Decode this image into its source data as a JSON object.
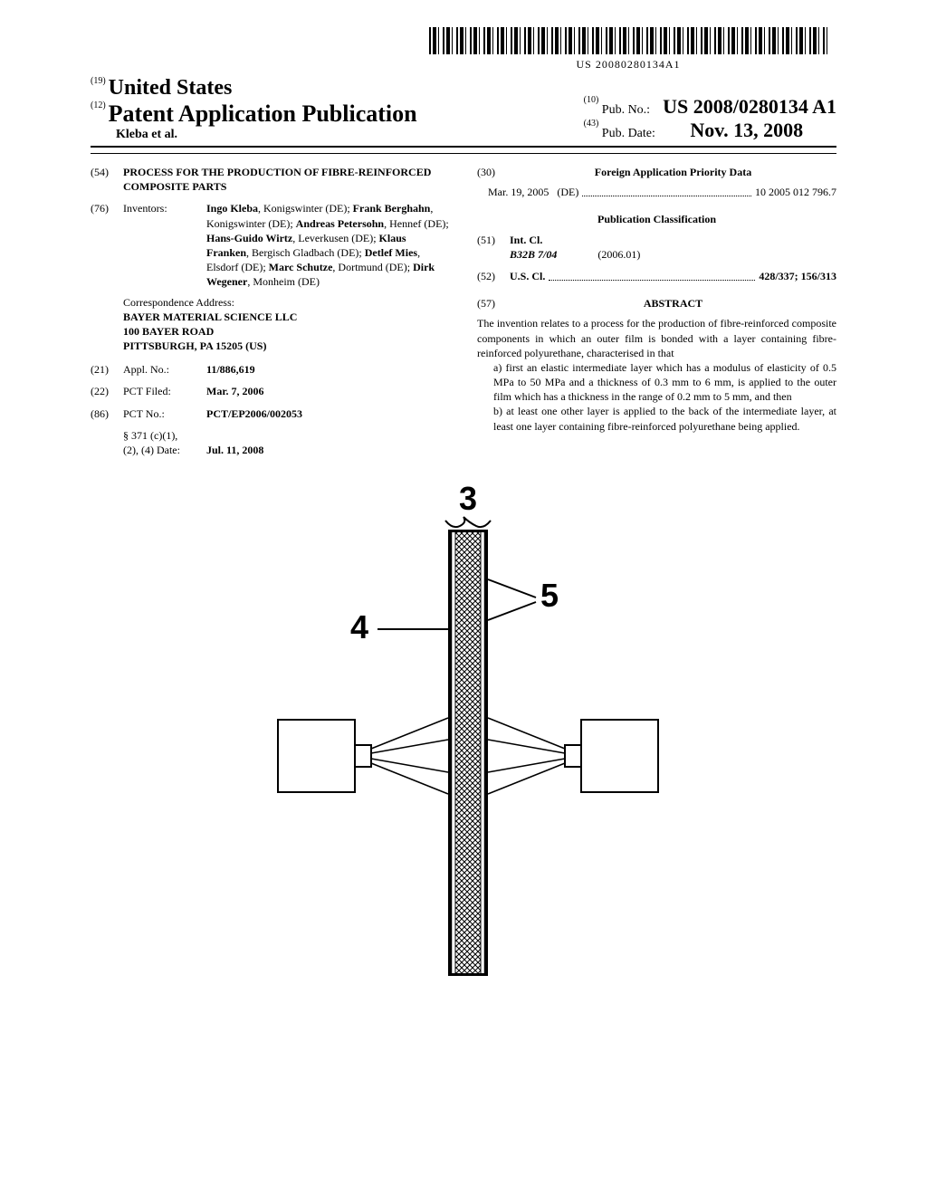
{
  "barcode_text": "US 20080280134A1",
  "header": {
    "code19": "(19)",
    "country": "United States",
    "code12": "(12)",
    "doc_type": "Patent Application Publication",
    "authors_line": "Kleba et al.",
    "code10": "(10)",
    "pubno_label": "Pub. No.:",
    "pubno": "US 2008/0280134 A1",
    "code43": "(43)",
    "pubdate_label": "Pub. Date:",
    "pubdate": "Nov. 13, 2008"
  },
  "title": {
    "code": "(54)",
    "text": "PROCESS FOR THE PRODUCTION OF FIBRE-REINFORCED COMPOSITE PARTS"
  },
  "inventors": {
    "code": "(76)",
    "label": "Inventors:",
    "list": "Ingo Kleba, Konigswinter (DE); Frank Berghahn, Konigswinter (DE); Andreas Petersohn, Hennef (DE); Hans-Guido Wirtz, Leverkusen (DE); Klaus Franken, Bergisch Gladbach (DE); Detlef Mies, Elsdorf (DE); Marc Schutze, Dortmund (DE); Dirk Wegener, Monheim (DE)"
  },
  "correspondence": {
    "label": "Correspondence Address:",
    "line1": "BAYER MATERIAL SCIENCE LLC",
    "line2": "100 BAYER ROAD",
    "line3": "PITTSBURGH, PA 15205 (US)"
  },
  "applno": {
    "code": "(21)",
    "label": "Appl. No.:",
    "value": "11/886,619"
  },
  "pctfiled": {
    "code": "(22)",
    "label": "PCT Filed:",
    "value": "Mar. 7, 2006"
  },
  "pctno": {
    "code": "(86)",
    "label": "PCT No.:",
    "value": "PCT/EP2006/002053"
  },
  "s371": {
    "line1": "§ 371 (c)(1),",
    "line2_label": "(2), (4) Date:",
    "line2_value": "Jul. 11, 2008"
  },
  "foreign": {
    "code": "(30)",
    "title": "Foreign Application Priority Data",
    "date": "Mar. 19, 2005",
    "country": "(DE)",
    "number": "10 2005 012 796.7"
  },
  "pubclass": {
    "title": "Publication Classification",
    "intcl_code": "(51)",
    "intcl_label": "Int. Cl.",
    "intcl_class": "B32B  7/04",
    "intcl_date": "(2006.01)",
    "uscl_code": "(52)",
    "uscl_label": "U.S. Cl.",
    "uscl_value": "428/337; 156/313"
  },
  "abstract": {
    "code": "(57)",
    "title": "ABSTRACT",
    "intro": "The invention relates to a process for the production of fibre-reinforced composite components in which an outer film is bonded with a layer containing fibre- reinforced polyurethane, characterised in that",
    "item_a": "a) first an elastic intermediate layer which has a modulus of elasticity of 0.5 MPa to 50 MPa and a thickness of 0.3 mm to 6 mm, is applied to the outer film which has a thickness in the range of 0.2 mm to 5 mm, and then",
    "item_b": "b) at least one other layer is applied to the back of the intermediate layer, at least one layer containing fibre-reinforced polyurethane being applied."
  },
  "figure": {
    "label3": "3",
    "label4": "4",
    "label5": "5"
  }
}
